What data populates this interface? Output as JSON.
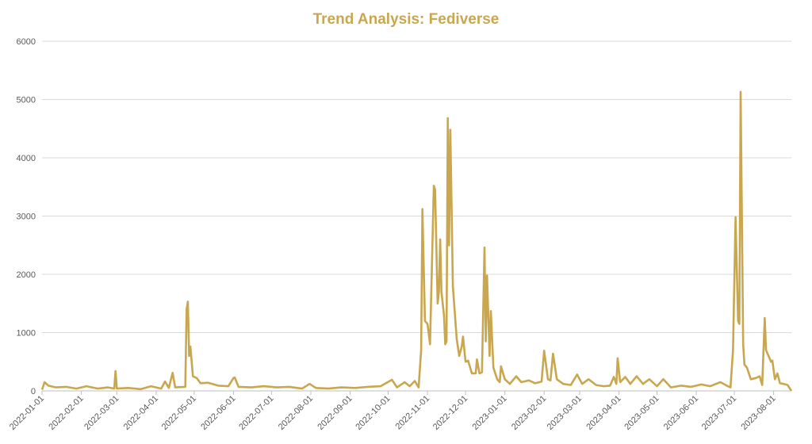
{
  "chart_data": {
    "type": "line",
    "title": "Trend Analysis: Fediverse",
    "xlabel": "",
    "ylabel": "",
    "ylim": [
      0,
      6000
    ],
    "yticks": [
      0,
      1000,
      2000,
      3000,
      4000,
      5000,
      6000
    ],
    "xlim": [
      "2022-01-01",
      "2023-08-15"
    ],
    "xticks": [
      "2022-01-01",
      "2022-02-01",
      "2022-03-01",
      "2022-04-01",
      "2022-05-01",
      "2022-06-01",
      "2022-07-01",
      "2022-08-01",
      "2022-09-01",
      "2022-10-01",
      "2022-11-01",
      "2022-12-01",
      "2023-01-01",
      "2023-02-01",
      "2023-03-01",
      "2023-04-01",
      "2023-05-01",
      "2023-06-01",
      "2023-07-01",
      "2023-08-01"
    ],
    "grid": true,
    "color": "#C9A74F",
    "series": [
      {
        "name": "Fediverse",
        "points": [
          [
            "2022-01-01",
            20
          ],
          [
            "2022-01-03",
            150
          ],
          [
            "2022-01-06",
            90
          ],
          [
            "2022-01-12",
            60
          ],
          [
            "2022-01-20",
            70
          ],
          [
            "2022-01-28",
            40
          ],
          [
            "2022-02-05",
            80
          ],
          [
            "2022-02-14",
            40
          ],
          [
            "2022-02-22",
            60
          ],
          [
            "2022-02-27",
            40
          ],
          [
            "2022-02-28",
            340
          ],
          [
            "2022-03-01",
            40
          ],
          [
            "2022-03-10",
            50
          ],
          [
            "2022-03-20",
            30
          ],
          [
            "2022-03-28",
            80
          ],
          [
            "2022-04-05",
            40
          ],
          [
            "2022-04-08",
            160
          ],
          [
            "2022-04-11",
            50
          ],
          [
            "2022-04-14",
            310
          ],
          [
            "2022-04-16",
            60
          ],
          [
            "2022-04-24",
            70
          ],
          [
            "2022-04-25",
            1400
          ],
          [
            "2022-04-26",
            1530
          ],
          [
            "2022-04-27",
            600
          ],
          [
            "2022-04-28",
            760
          ],
          [
            "2022-04-30",
            250
          ],
          [
            "2022-05-03",
            220
          ],
          [
            "2022-05-06",
            130
          ],
          [
            "2022-05-12",
            140
          ],
          [
            "2022-05-20",
            90
          ],
          [
            "2022-05-28",
            80
          ],
          [
            "2022-06-01",
            220
          ],
          [
            "2022-06-02",
            230
          ],
          [
            "2022-06-05",
            70
          ],
          [
            "2022-06-15",
            60
          ],
          [
            "2022-06-25",
            80
          ],
          [
            "2022-07-05",
            60
          ],
          [
            "2022-07-15",
            70
          ],
          [
            "2022-07-25",
            40
          ],
          [
            "2022-07-31",
            120
          ],
          [
            "2022-08-05",
            50
          ],
          [
            "2022-08-15",
            40
          ],
          [
            "2022-08-25",
            60
          ],
          [
            "2022-09-05",
            50
          ],
          [
            "2022-09-15",
            70
          ],
          [
            "2022-09-25",
            80
          ],
          [
            "2022-10-04",
            190
          ],
          [
            "2022-10-08",
            60
          ],
          [
            "2022-10-14",
            150
          ],
          [
            "2022-10-18",
            80
          ],
          [
            "2022-10-22",
            170
          ],
          [
            "2022-10-25",
            60
          ],
          [
            "2022-10-27",
            700
          ],
          [
            "2022-10-28",
            3120
          ],
          [
            "2022-10-30",
            1200
          ],
          [
            "2022-11-01",
            1150
          ],
          [
            "2022-11-03",
            800
          ],
          [
            "2022-11-06",
            3520
          ],
          [
            "2022-11-07",
            3450
          ],
          [
            "2022-11-09",
            1500
          ],
          [
            "2022-11-10",
            1700
          ],
          [
            "2022-11-11",
            2600
          ],
          [
            "2022-11-12",
            1700
          ],
          [
            "2022-11-14",
            1300
          ],
          [
            "2022-11-15",
            800
          ],
          [
            "2022-11-16",
            850
          ],
          [
            "2022-11-17",
            4680
          ],
          [
            "2022-11-18",
            2500
          ],
          [
            "2022-11-19",
            4480
          ],
          [
            "2022-11-21",
            1800
          ],
          [
            "2022-11-24",
            900
          ],
          [
            "2022-11-26",
            600
          ],
          [
            "2022-11-28",
            760
          ],
          [
            "2022-11-29",
            930
          ],
          [
            "2022-12-01",
            500
          ],
          [
            "2022-12-03",
            520
          ],
          [
            "2022-12-06",
            300
          ],
          [
            "2022-12-09",
            300
          ],
          [
            "2022-12-10",
            540
          ],
          [
            "2022-12-12",
            300
          ],
          [
            "2022-12-14",
            320
          ],
          [
            "2022-12-16",
            2460
          ],
          [
            "2022-12-17",
            850
          ],
          [
            "2022-12-18",
            1980
          ],
          [
            "2022-12-20",
            600
          ],
          [
            "2022-12-21",
            1370
          ],
          [
            "2022-12-23",
            400
          ],
          [
            "2022-12-26",
            200
          ],
          [
            "2022-12-28",
            150
          ],
          [
            "2022-12-29",
            420
          ],
          [
            "2023-01-01",
            200
          ],
          [
            "2023-01-05",
            120
          ],
          [
            "2023-01-10",
            250
          ],
          [
            "2023-01-14",
            150
          ],
          [
            "2023-01-20",
            180
          ],
          [
            "2023-01-25",
            130
          ],
          [
            "2023-01-30",
            160
          ],
          [
            "2023-02-01",
            690
          ],
          [
            "2023-02-04",
            200
          ],
          [
            "2023-02-06",
            180
          ],
          [
            "2023-02-08",
            640
          ],
          [
            "2023-02-11",
            200
          ],
          [
            "2023-02-16",
            120
          ],
          [
            "2023-02-22",
            100
          ],
          [
            "2023-02-27",
            280
          ],
          [
            "2023-03-03",
            120
          ],
          [
            "2023-03-08",
            200
          ],
          [
            "2023-03-14",
            100
          ],
          [
            "2023-03-20",
            80
          ],
          [
            "2023-03-25",
            90
          ],
          [
            "2023-03-28",
            240
          ],
          [
            "2023-03-30",
            120
          ],
          [
            "2023-03-31",
            560
          ],
          [
            "2023-04-02",
            150
          ],
          [
            "2023-04-06",
            240
          ],
          [
            "2023-04-10",
            120
          ],
          [
            "2023-04-15",
            250
          ],
          [
            "2023-04-20",
            120
          ],
          [
            "2023-04-25",
            200
          ],
          [
            "2023-05-01",
            80
          ],
          [
            "2023-05-06",
            200
          ],
          [
            "2023-05-12",
            60
          ],
          [
            "2023-05-20",
            90
          ],
          [
            "2023-05-28",
            70
          ],
          [
            "2023-06-05",
            110
          ],
          [
            "2023-06-12",
            80
          ],
          [
            "2023-06-20",
            150
          ],
          [
            "2023-06-25",
            90
          ],
          [
            "2023-06-28",
            60
          ],
          [
            "2023-06-30",
            700
          ],
          [
            "2023-07-02",
            2980
          ],
          [
            "2023-07-04",
            1200
          ],
          [
            "2023-07-05",
            1150
          ],
          [
            "2023-07-06",
            5130
          ],
          [
            "2023-07-08",
            800
          ],
          [
            "2023-07-09",
            450
          ],
          [
            "2023-07-11",
            400
          ],
          [
            "2023-07-14",
            200
          ],
          [
            "2023-07-18",
            220
          ],
          [
            "2023-07-21",
            250
          ],
          [
            "2023-07-23",
            100
          ],
          [
            "2023-07-25",
            1250
          ],
          [
            "2023-07-26",
            700
          ],
          [
            "2023-07-28",
            600
          ],
          [
            "2023-07-30",
            500
          ],
          [
            "2023-07-31",
            520
          ],
          [
            "2023-08-02",
            200
          ],
          [
            "2023-08-04",
            300
          ],
          [
            "2023-08-06",
            130
          ],
          [
            "2023-08-09",
            120
          ],
          [
            "2023-08-12",
            100
          ],
          [
            "2023-08-15",
            0
          ]
        ]
      }
    ]
  }
}
